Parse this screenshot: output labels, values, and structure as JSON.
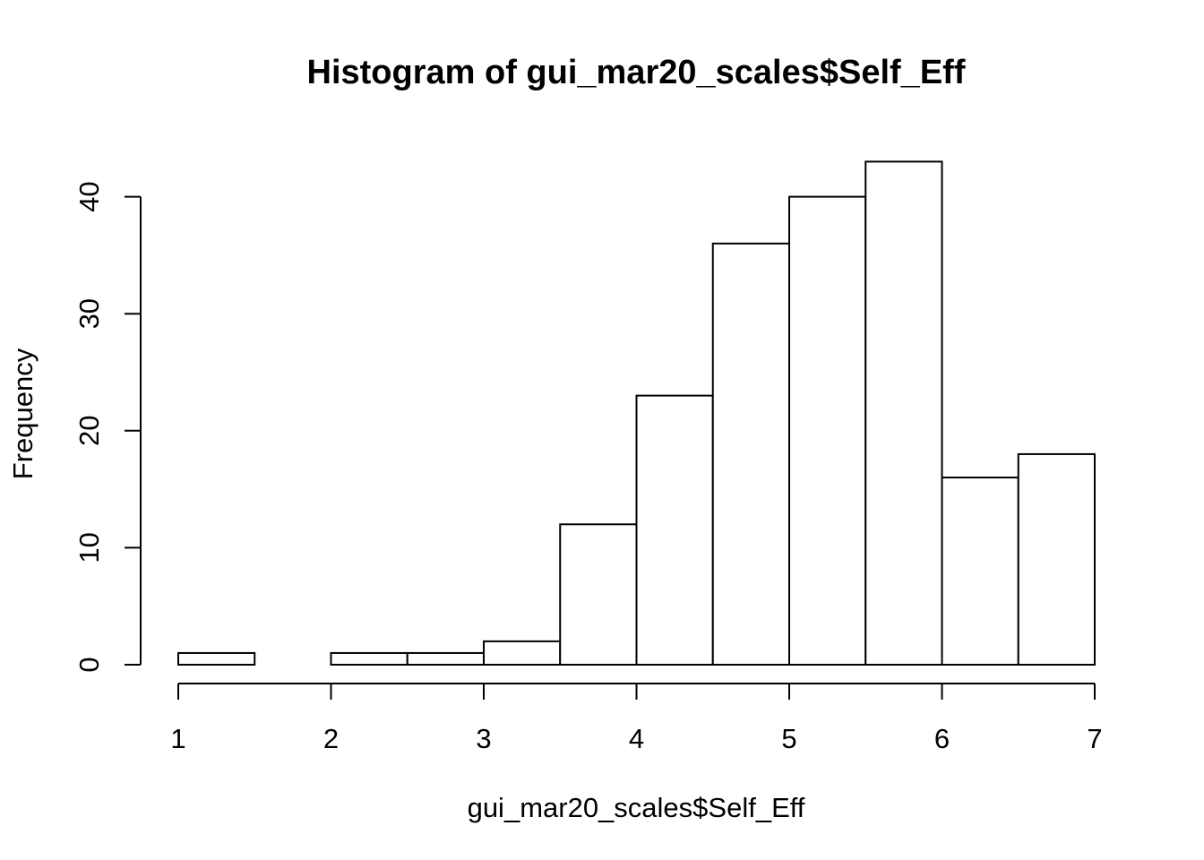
{
  "chart_data": {
    "type": "bar",
    "subtype": "histogram",
    "title": "Histogram of gui_mar20_scales$Self_Eff",
    "xlabel": "gui_mar20_scales$Self_Eff",
    "ylabel": "Frequency",
    "bin_edges": [
      1,
      1.5,
      2,
      2.5,
      3,
      3.5,
      4,
      4.5,
      5,
      5.5,
      6,
      6.5,
      7
    ],
    "values": [
      1,
      0,
      1,
      1,
      2,
      12,
      23,
      36,
      40,
      43,
      16,
      18
    ],
    "xlim": [
      1,
      7
    ],
    "ylim": [
      0,
      43
    ],
    "x_ticks": [
      "1",
      "2",
      "3",
      "4",
      "5",
      "6",
      "7"
    ],
    "y_ticks": [
      "0",
      "10",
      "20",
      "30",
      "40"
    ],
    "grid": false,
    "colors": {
      "bar_fill": "#ffffff",
      "bar_stroke": "#000000",
      "axis": "#000000"
    }
  }
}
